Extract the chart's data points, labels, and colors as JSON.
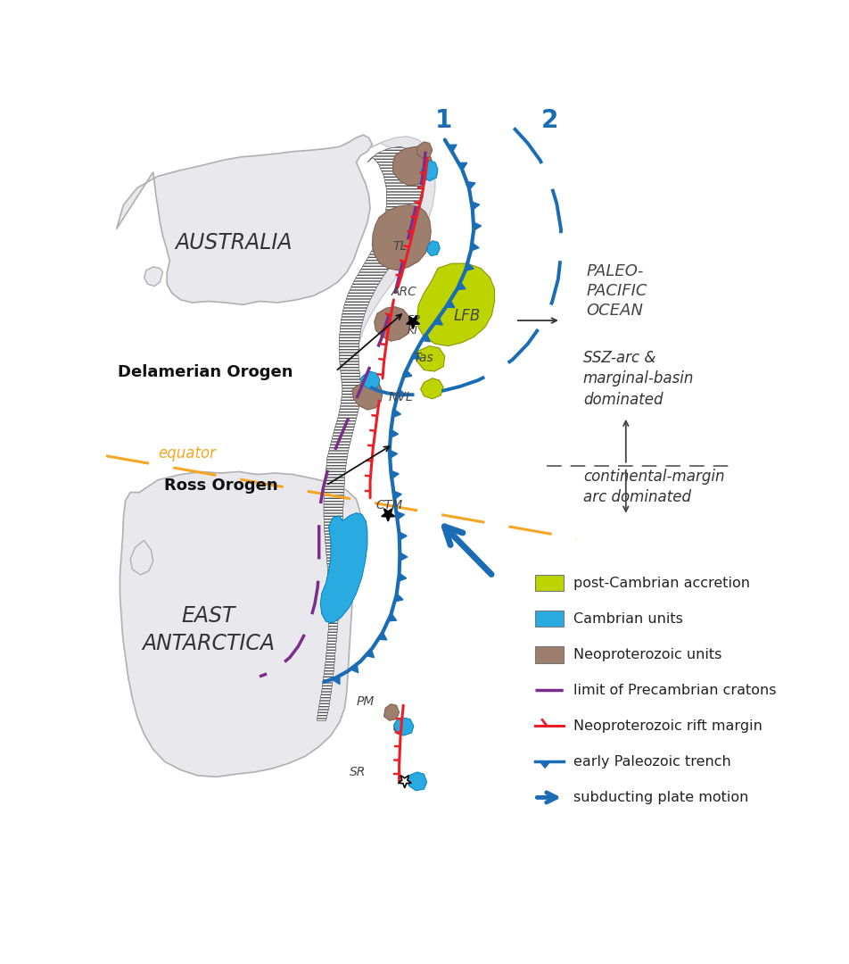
{
  "background_color": "#ffffff",
  "continent_color": "#e8e8ed",
  "continent_edge_color": "#b0b0b0",
  "post_cambrian_color": "#bdd400",
  "cambrian_color": "#29abe2",
  "neoproterozoic_color": "#9e7f6e",
  "precambrian_limit_color": "#7b2d8b",
  "rift_margin_color": "#ee1c25",
  "trench_color": "#1a6db5",
  "equator_color": "#f5a623",
  "label_australia": "AUSTRALIA",
  "label_antarctica": "EAST\nANTARCTICA",
  "label_delamerian": "Delamerian Orogen",
  "label_ross": "Ross Orogen",
  "label_paleo_pacific": "PALEO-\nPACIFIC\nOCEAN",
  "label_ssz": "SSZ-arc &\nmarginal-basin\ndominated",
  "label_cont_margin": "continental-margin\narc dominated",
  "label_equator": "equator",
  "legend_items": [
    {
      "label": "post-Cambrian accretion",
      "color": "#bdd400",
      "type": "patch"
    },
    {
      "label": "Cambrian units",
      "color": "#29abe2",
      "type": "patch"
    },
    {
      "label": "Neoproterozoic units",
      "color": "#9e7f6e",
      "type": "patch"
    },
    {
      "label": "limit of Precambrian cratons",
      "color": "#7b2d8b",
      "type": "dashed_line"
    },
    {
      "label": "Neoproterozoic rift margin",
      "color": "#ee1c25",
      "type": "tick_line"
    },
    {
      "label": "early Paleozoic trench",
      "color": "#1a6db5",
      "type": "trench_line"
    },
    {
      "label": "subducting plate motion",
      "color": "#1a6db5",
      "type": "arrow"
    }
  ]
}
